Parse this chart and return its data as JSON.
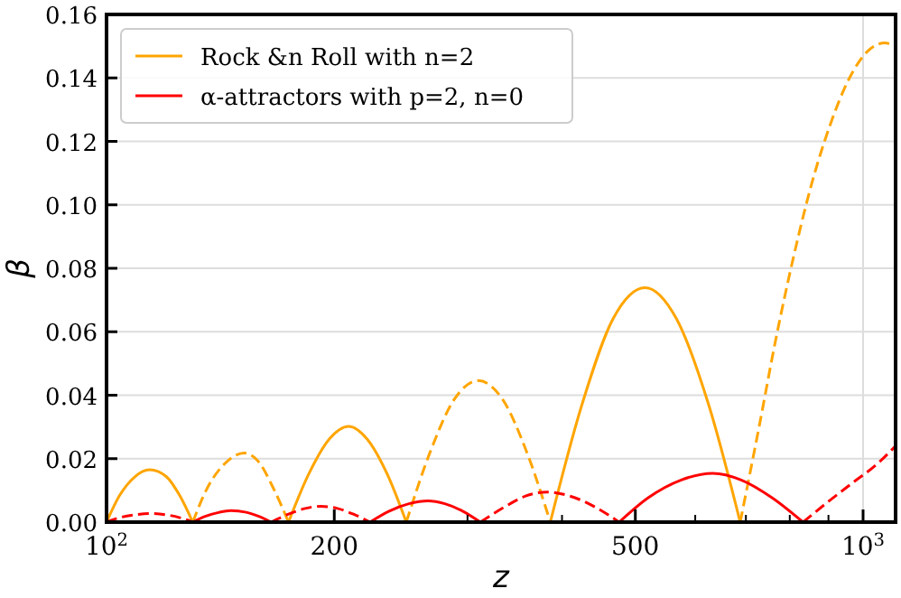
{
  "chart_data": {
    "type": "line",
    "xlabel": "z",
    "ylabel": "β",
    "log": "x",
    "grid": true,
    "legend": "top left",
    "xlim": [
      100,
      1104
    ],
    "xticks": [
      {
        "value": 100,
        "label": "10$^{2}$"
      },
      {
        "value": 200,
        "label": "200"
      },
      {
        "value": 300,
        "label": null
      },
      {
        "value": 400,
        "label": null
      },
      {
        "value": 500,
        "label": "500"
      },
      {
        "value": 600,
        "label": null
      },
      {
        "value": 700,
        "label": null
      },
      {
        "value": 800,
        "label": null
      },
      {
        "value": 900,
        "label": null
      },
      {
        "value": 1000,
        "label": "10$^{3}$"
      }
    ],
    "ylim": [
      0,
      0.16
    ],
    "yticks": [
      {
        "value": 0,
        "label": "0.00"
      },
      {
        "value": 0.02,
        "label": "0.02"
      },
      {
        "value": 0.04,
        "label": "0.04"
      },
      {
        "value": 0.06,
        "label": "0.06"
      },
      {
        "value": 0.08,
        "label": "0.08"
      },
      {
        "value": 0.1,
        "label": "0.10"
      },
      {
        "value": 0.12,
        "label": "0.12"
      },
      {
        "value": 0.14,
        "label": "0.14"
      },
      {
        "value": 0.16,
        "label": "0.16"
      }
    ],
    "series": [
      {
        "name": "Rock &n Roll with n=2",
        "color": "#ffa500",
        "line_style": "solid",
        "x": [
          100,
          104,
          109,
          114,
          120,
          125,
          130
        ],
        "values": [
          0,
          0.0083,
          0.0143,
          0.0165,
          0.0143,
          0.0083,
          0
        ]
      },
      {
        "color": "#ffa500",
        "line_style": "dashed",
        "x": [
          130,
          136,
          144,
          152,
          159,
          166,
          174
        ],
        "values": [
          0,
          0.0109,
          0.0189,
          0.0218,
          0.0189,
          0.0109,
          0
        ]
      },
      {
        "color": "#ffa500",
        "line_style": "solid",
        "x": [
          174,
          185,
          197,
          209,
          221,
          235,
          249
        ],
        "values": [
          0,
          0.0151,
          0.0262,
          0.0302,
          0.0262,
          0.0151,
          0
        ]
      },
      {
        "color": "#ffa500",
        "line_style": "dashed",
        "x": [
          249,
          268,
          288,
          310,
          334,
          359,
          386
        ],
        "values": [
          0,
          0.0223,
          0.0386,
          0.0446,
          0.0386,
          0.0223,
          0
        ]
      },
      {
        "color": "#ffa500",
        "line_style": "solid",
        "x": [
          386,
          425,
          467,
          515,
          567,
          625,
          688
        ],
        "values": [
          0,
          0.037,
          0.064,
          0.0739,
          0.064,
          0.037,
          0
        ]
      },
      {
        "color": "#ffa500",
        "line_style": "dashed",
        "x": [
          688,
          728,
          767,
          810,
          856,
          904,
          955,
          1010,
          1068,
          1104
        ],
        "values": [
          0,
          0.0295,
          0.0578,
          0.084,
          0.107,
          0.125,
          0.139,
          0.148,
          0.151,
          0.15
        ]
      },
      {
        "name": "α-attractors with p=2, n=0",
        "color": "#ff0000",
        "line_style": "dashed",
        "x": [
          100,
          104,
          109,
          114,
          120,
          125,
          130
        ],
        "values": [
          0,
          0.0014,
          0.0023,
          0.0027,
          0.0023,
          0.0014,
          0
        ]
      },
      {
        "color": "#ff0000",
        "line_style": "solid",
        "x": [
          130,
          135,
          141,
          146,
          153,
          159,
          165
        ],
        "values": [
          0,
          0.0018,
          0.0031,
          0.0036,
          0.0031,
          0.0018,
          0
        ]
      },
      {
        "color": "#ff0000",
        "line_style": "dashed",
        "x": [
          165,
          174,
          183,
          192,
          202,
          212,
          223
        ],
        "values": [
          0,
          0.0025,
          0.0043,
          0.005,
          0.0043,
          0.0025,
          0
        ]
      },
      {
        "color": "#ff0000",
        "line_style": "solid",
        "x": [
          223,
          236,
          251,
          266,
          280,
          296,
          312
        ],
        "values": [
          0,
          0.0034,
          0.0058,
          0.0067,
          0.0058,
          0.0034,
          0
        ]
      },
      {
        "color": "#ff0000",
        "line_style": "dashed",
        "x": [
          312,
          336,
          358,
          382,
          410,
          442,
          476
        ],
        "values": [
          0,
          0.0048,
          0.0082,
          0.0095,
          0.0082,
          0.0048,
          0
        ]
      },
      {
        "color": "#ff0000",
        "line_style": "solid",
        "x": [
          476,
          520,
          575,
          633,
          690,
          758,
          833
        ],
        "values": [
          0,
          0.0077,
          0.0133,
          0.0154,
          0.0133,
          0.0077,
          0
        ]
      },
      {
        "color": "#ff0000",
        "line_style": "dashed",
        "x": [
          833,
          900,
          970,
          1040,
          1104
        ],
        "values": [
          0,
          0.0065,
          0.0125,
          0.018,
          0.024
        ]
      }
    ]
  }
}
